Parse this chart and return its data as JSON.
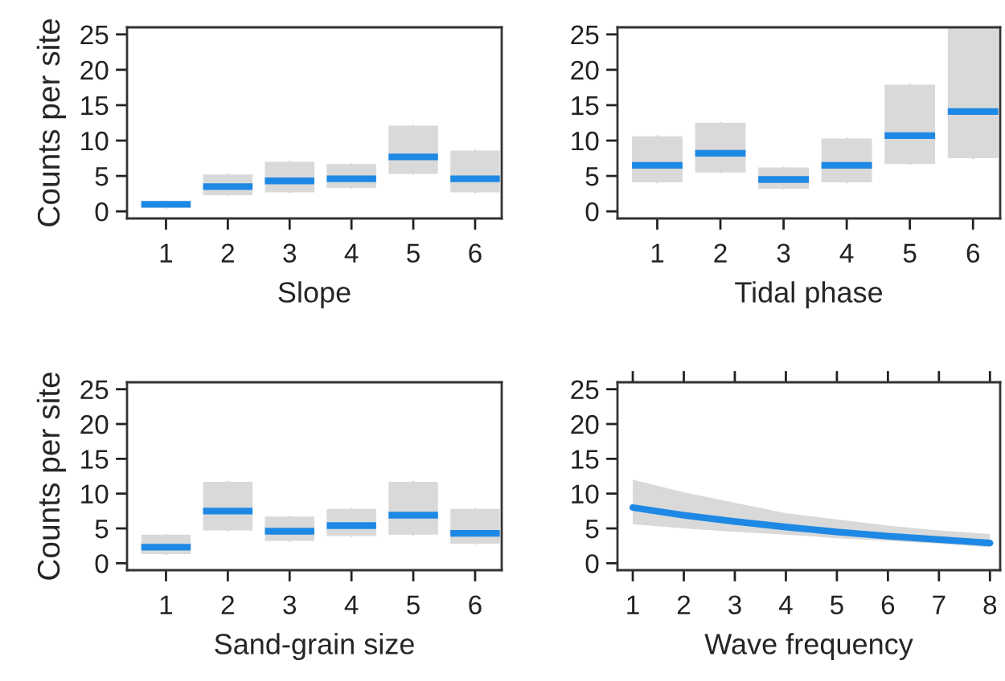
{
  "chart_data": [
    {
      "type": "box",
      "xlabel": "Slope",
      "ylabel": "Counts per site",
      "categories": [
        "1",
        "2",
        "3",
        "4",
        "5",
        "6"
      ],
      "series": [
        {
          "color": "#d9d9d9",
          "boxes": [
            {
              "low": 0.5,
              "q1": 0.5,
              "median": 1.0,
              "q3": 1.4,
              "high": 1.4
            },
            {
              "low": 2.3,
              "q1": 2.3,
              "median": 3.5,
              "q3": 5.2,
              "high": 5.2
            },
            {
              "low": 2.7,
              "q1": 2.7,
              "median": 4.3,
              "q3": 7.0,
              "high": 7.0
            },
            {
              "low": 3.3,
              "q1": 3.3,
              "median": 4.6,
              "q3": 6.7,
              "high": 6.7
            },
            {
              "low": 5.3,
              "q1": 5.3,
              "median": 7.7,
              "q3": 12.1,
              "high": 12.1
            },
            {
              "low": 2.7,
              "q1": 2.7,
              "median": 4.6,
              "q3": 8.6,
              "high": 8.6
            }
          ]
        }
      ],
      "ylim": [
        -1,
        26
      ],
      "yticks": [
        0,
        5,
        10,
        15,
        20,
        25
      ],
      "grid": false
    },
    {
      "type": "box",
      "xlabel": "Tidal phase",
      "categories": [
        "1",
        "2",
        "3",
        "4",
        "5",
        "6"
      ],
      "series": [
        {
          "color": "#d9d9d9",
          "boxes": [
            {
              "low": 4.1,
              "q1": 4.1,
              "median": 6.5,
              "q3": 10.6,
              "high": 10.6
            },
            {
              "low": 5.5,
              "q1": 5.5,
              "median": 8.2,
              "q3": 12.5,
              "high": 12.5
            },
            {
              "low": 3.2,
              "q1": 3.2,
              "median": 4.5,
              "q3": 6.2,
              "high": 6.2
            },
            {
              "low": 4.1,
              "q1": 4.1,
              "median": 6.5,
              "q3": 10.3,
              "high": 10.3
            },
            {
              "low": 6.7,
              "q1": 6.7,
              "median": 10.7,
              "q3": 17.9,
              "high": 17.9
            },
            {
              "low": 7.5,
              "q1": 7.5,
              "median": 14.1,
              "q3": 26,
              "high": 26
            }
          ]
        }
      ],
      "ylim": [
        -1,
        26
      ],
      "yticks": [
        0,
        5,
        10,
        15,
        20,
        25
      ],
      "grid": false
    },
    {
      "type": "box",
      "xlabel": "Sand-grain size",
      "ylabel": "Counts per site",
      "categories": [
        "1",
        "2",
        "3",
        "4",
        "5",
        "6"
      ],
      "series": [
        {
          "color": "#d9d9d9",
          "boxes": [
            {
              "low": 1.3,
              "q1": 1.3,
              "median": 2.3,
              "q3": 4.1,
              "high": 4.1
            },
            {
              "low": 4.7,
              "q1": 4.7,
              "median": 7.5,
              "q3": 11.7,
              "high": 11.7
            },
            {
              "low": 3.2,
              "q1": 3.2,
              "median": 4.6,
              "q3": 6.7,
              "high": 6.7
            },
            {
              "low": 3.9,
              "q1": 3.9,
              "median": 5.4,
              "q3": 7.8,
              "high": 7.8
            },
            {
              "low": 4.1,
              "q1": 4.1,
              "median": 6.9,
              "q3": 11.7,
              "high": 11.7
            },
            {
              "low": 2.8,
              "q1": 2.8,
              "median": 4.3,
              "q3": 7.8,
              "high": 7.8
            }
          ]
        }
      ],
      "ylim": [
        -1,
        26
      ],
      "yticks": [
        0,
        5,
        10,
        15,
        20,
        25
      ],
      "grid": false
    },
    {
      "type": "line",
      "xlabel": "Wave frequency",
      "x": [
        1,
        2,
        3,
        4,
        5,
        6,
        7,
        8
      ],
      "series": [
        {
          "color": "#1e88e5",
          "values": [
            8.0,
            6.9,
            6.0,
            5.2,
            4.5,
            3.9,
            3.4,
            2.9
          ],
          "lower": [
            5.6,
            5.0,
            4.5,
            4.1,
            3.6,
            3.2,
            2.8,
            2.3
          ],
          "upper": [
            12.0,
            10.2,
            8.7,
            7.2,
            6.3,
            5.4,
            4.7,
            4.2
          ]
        }
      ],
      "xlim": [
        0.7,
        8.2
      ],
      "xticks": [
        1,
        2,
        3,
        4,
        5,
        6,
        7,
        8
      ],
      "ylim": [
        -1,
        26
      ],
      "yticks": [
        0,
        5,
        10,
        15,
        20,
        25
      ],
      "grid": false
    }
  ]
}
